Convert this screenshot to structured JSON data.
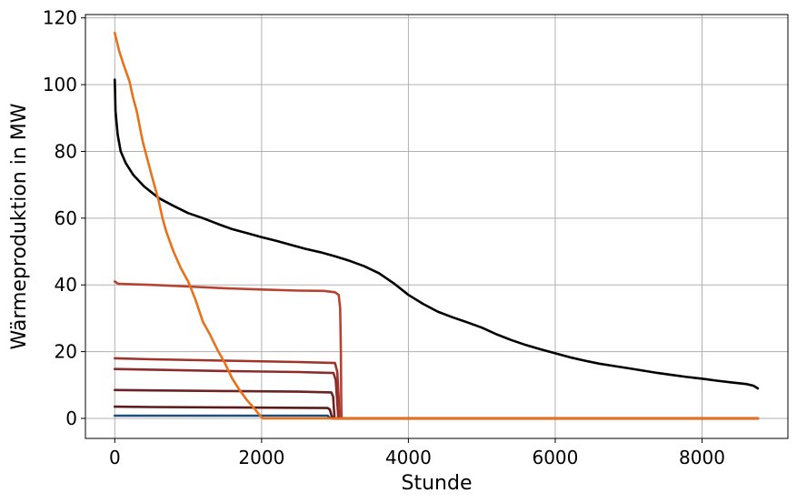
{
  "chart_data": {
    "type": "line",
    "title": "",
    "xlabel": "Stunde",
    "ylabel": "Wärmeproduktion in MW",
    "xlim": [
      -400,
      9170
    ],
    "ylim": [
      -6,
      121
    ],
    "xticks": [
      0,
      2000,
      4000,
      6000,
      8000
    ],
    "yticks": [
      0,
      20,
      40,
      60,
      80,
      100,
      120
    ],
    "xtick_labels": [
      "0",
      "2000",
      "4000",
      "6000",
      "8000"
    ],
    "ytick_labels": [
      "0",
      "20",
      "40",
      "60",
      "80",
      "100",
      "120"
    ],
    "grid": true,
    "legend": "none",
    "series": [
      {
        "color": "#1f4e79",
        "points": [
          [
            0,
            0.8
          ],
          [
            2900,
            0.8
          ],
          [
            2920,
            0.3
          ],
          [
            2950,
            0
          ],
          [
            8760,
            0
          ]
        ]
      },
      {
        "color": "#5c1a1a",
        "points": [
          [
            0,
            3.5
          ],
          [
            500,
            3.4
          ],
          [
            1500,
            3.3
          ],
          [
            2900,
            3.1
          ],
          [
            2930,
            2.6
          ],
          [
            2950,
            1
          ],
          [
            2970,
            0
          ],
          [
            8760,
            0
          ]
        ]
      },
      {
        "color": "#6b2222",
        "points": [
          [
            0,
            8.5
          ],
          [
            500,
            8.4
          ],
          [
            1500,
            8.2
          ],
          [
            2500,
            8.0
          ],
          [
            2950,
            7.8
          ],
          [
            2975,
            6.5
          ],
          [
            2985,
            3
          ],
          [
            2995,
            0
          ],
          [
            8760,
            0
          ]
        ]
      },
      {
        "color": "#8c2b2b",
        "points": [
          [
            0,
            14.8
          ],
          [
            500,
            14.6
          ],
          [
            1500,
            14.2
          ],
          [
            2500,
            13.9
          ],
          [
            2980,
            13.6
          ],
          [
            3010,
            11.5
          ],
          [
            3030,
            5
          ],
          [
            3045,
            0
          ],
          [
            8760,
            0
          ]
        ]
      },
      {
        "color": "#a0332b",
        "points": [
          [
            0,
            18.0
          ],
          [
            500,
            17.7
          ],
          [
            1500,
            17.3
          ],
          [
            2500,
            16.9
          ],
          [
            3000,
            16.6
          ],
          [
            3030,
            14
          ],
          [
            3050,
            6
          ],
          [
            3060,
            0
          ],
          [
            8760,
            0
          ]
        ]
      },
      {
        "color": "#b84232",
        "points": [
          [
            0,
            41
          ],
          [
            50,
            40.3
          ],
          [
            500,
            40.0
          ],
          [
            1000,
            39.5
          ],
          [
            1500,
            39.0
          ],
          [
            2000,
            38.6
          ],
          [
            2500,
            38.3
          ],
          [
            2850,
            38.2
          ],
          [
            3000,
            37.8
          ],
          [
            3050,
            37.0
          ],
          [
            3070,
            33
          ],
          [
            3080,
            20
          ],
          [
            3085,
            5
          ],
          [
            3090,
            0
          ],
          [
            8760,
            0
          ]
        ]
      },
      {
        "color": "#000000",
        "points": [
          [
            0,
            101.5
          ],
          [
            10,
            92
          ],
          [
            40,
            85
          ],
          [
            80,
            80
          ],
          [
            150,
            76.5
          ],
          [
            250,
            73
          ],
          [
            400,
            69.5
          ],
          [
            600,
            66
          ],
          [
            800,
            63.7
          ],
          [
            1000,
            61.5
          ],
          [
            1200,
            60
          ],
          [
            1400,
            58.3
          ],
          [
            1600,
            56.7
          ],
          [
            1800,
            55.5
          ],
          [
            2000,
            54.3
          ],
          [
            2200,
            53.2
          ],
          [
            2400,
            52
          ],
          [
            2600,
            50.8
          ],
          [
            2800,
            49.8
          ],
          [
            3000,
            48.6
          ],
          [
            3200,
            47.2
          ],
          [
            3400,
            45.6
          ],
          [
            3600,
            43.5
          ],
          [
            3800,
            40.5
          ],
          [
            4000,
            37
          ],
          [
            4200,
            34.3
          ],
          [
            4400,
            32
          ],
          [
            4600,
            30.3
          ],
          [
            4800,
            28.8
          ],
          [
            5000,
            27.2
          ],
          [
            5200,
            25.2
          ],
          [
            5400,
            23.5
          ],
          [
            5600,
            22
          ],
          [
            5800,
            20.7
          ],
          [
            6000,
            19.5
          ],
          [
            6200,
            18.3
          ],
          [
            6400,
            17.3
          ],
          [
            6600,
            16.4
          ],
          [
            6800,
            15.7
          ],
          [
            7000,
            15
          ],
          [
            7200,
            14.3
          ],
          [
            7400,
            13.6
          ],
          [
            7600,
            13
          ],
          [
            7800,
            12.4
          ],
          [
            8000,
            11.9
          ],
          [
            8200,
            11.3
          ],
          [
            8400,
            10.8
          ],
          [
            8600,
            10.3
          ],
          [
            8700,
            9.8
          ],
          [
            8760,
            9
          ]
        ]
      },
      {
        "color": "#e8711a",
        "points": [
          [
            0,
            115.5
          ],
          [
            60,
            110
          ],
          [
            120,
            106
          ],
          [
            200,
            101
          ],
          [
            250,
            96
          ],
          [
            300,
            92
          ],
          [
            380,
            83
          ],
          [
            500,
            73
          ],
          [
            600,
            65
          ],
          [
            650,
            60
          ],
          [
            700,
            56
          ],
          [
            800,
            50
          ],
          [
            900,
            45
          ],
          [
            1000,
            41
          ],
          [
            1100,
            35.5
          ],
          [
            1200,
            29
          ],
          [
            1300,
            25
          ],
          [
            1400,
            20.5
          ],
          [
            1500,
            16.5
          ],
          [
            1600,
            12
          ],
          [
            1700,
            8.5
          ],
          [
            1800,
            5.5
          ],
          [
            1900,
            3
          ],
          [
            1980,
            0.8
          ],
          [
            2020,
            0
          ],
          [
            8760,
            0
          ]
        ]
      }
    ]
  }
}
